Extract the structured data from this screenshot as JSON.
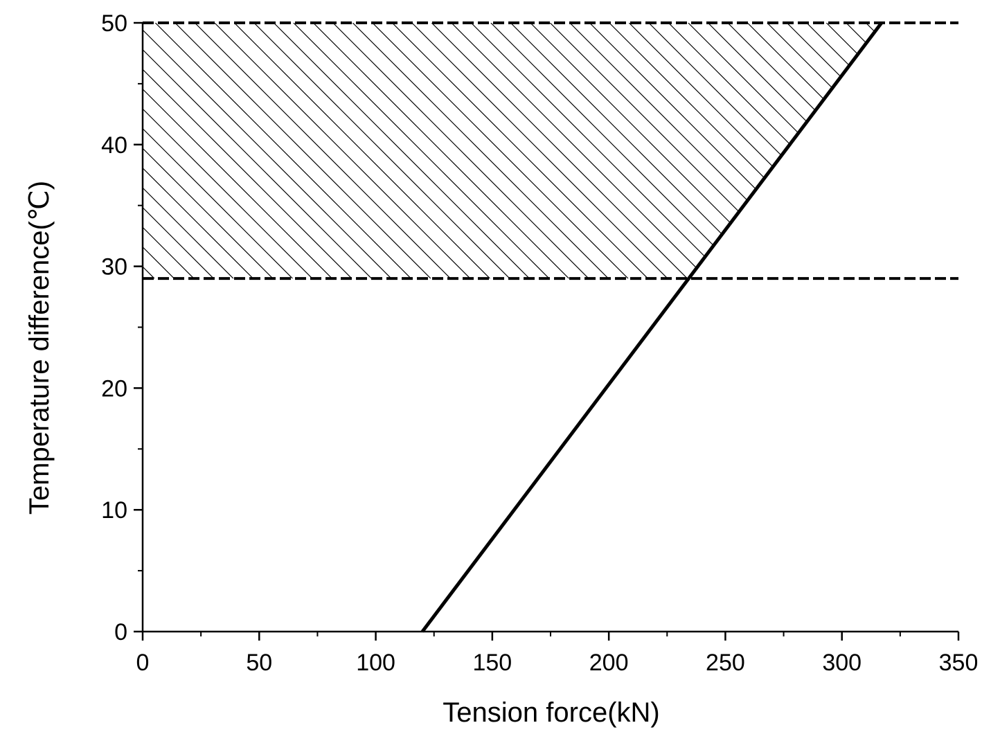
{
  "chart_data": {
    "type": "line",
    "title": "",
    "xlabel": "Tension force(kN)",
    "ylabel": "Temperature difference(℃)",
    "xlim": [
      0,
      350
    ],
    "ylim": [
      0,
      50
    ],
    "x_ticks": [
      "0",
      "50",
      "100",
      "150",
      "200",
      "250",
      "300",
      "350"
    ],
    "y_ticks": [
      "0",
      "10",
      "20",
      "30",
      "40",
      "50"
    ],
    "grid": false,
    "legend": "none",
    "series": [
      {
        "style": "solid",
        "x": [
          120,
          317
        ],
        "y": [
          0,
          50
        ]
      }
    ],
    "reference_lines": [
      {
        "style": "dashed",
        "y": 50
      },
      {
        "style": "dashed",
        "y": 29
      }
    ],
    "shaded_region": {
      "pattern": "diagonal-hatch",
      "y_range": [
        29,
        50
      ],
      "x_min": 0,
      "right_bound": "solid line"
    }
  }
}
